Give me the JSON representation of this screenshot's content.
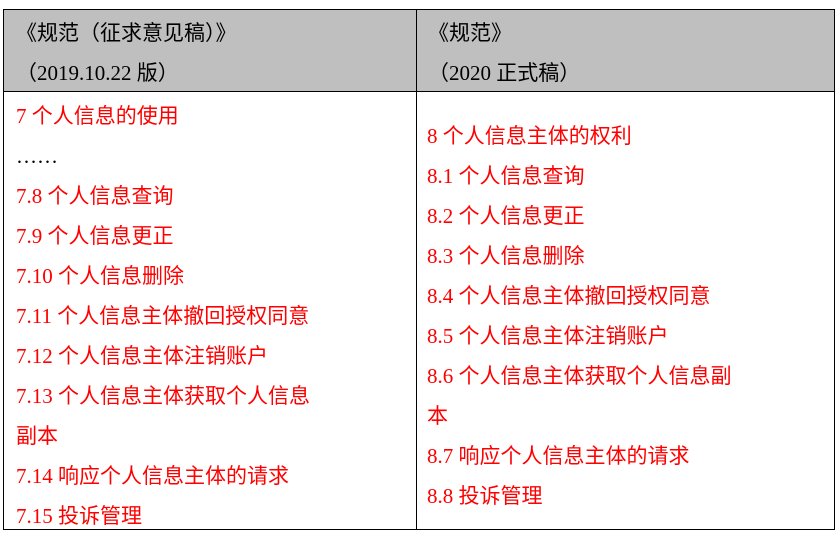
{
  "header": {
    "left": [
      "《规范（征求意见稿）》",
      "（2019.10.22 版）"
    ],
    "right": [
      "《规范》",
      "（2020 正式稿）"
    ]
  },
  "left_items": [
    "7  个人信息的使用",
    "……",
    "7.8  个人信息查询",
    "7.9  个人信息更正",
    "7.10  个人信息删除",
    "7.11  个人信息主体撤回授权同意",
    "7.12  个人信息主体注销账户",
    "7.13  个人信息主体获取个人信息",
    "副本",
    "7.14  响应个人信息主体的请求",
    "7.15  投诉管理"
  ],
  "right_items": [
    "8  个人信息主体的权利",
    "8.1  个人信息查询",
    "8.2  个人信息更正",
    "8.3  个人信息删除",
    "8.4  个人信息主体撤回授权同意",
    "8.5  个人信息主体注销账户",
    "8.6  个人信息主体获取个人信息副",
    "本",
    "8.7  响应个人信息主体的请求",
    "8.8  投诉管理"
  ],
  "colors": {
    "text_red": "#ff0000",
    "header_bg": "#bfbfbf"
  }
}
